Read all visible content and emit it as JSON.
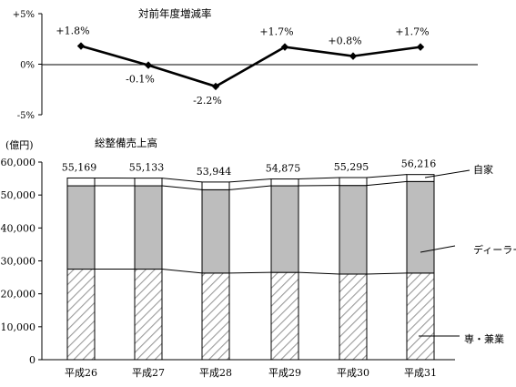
{
  "chart_data": [
    {
      "type": "line",
      "title": "対前年度増減率",
      "x": [
        "平成26",
        "平成27",
        "平成28",
        "平成29",
        "平成30",
        "平成31"
      ],
      "values": [
        1.8,
        -0.1,
        -2.2,
        1.7,
        0.8,
        1.7
      ],
      "data_labels": [
        "+1.8%",
        "-0.1%",
        "-2.2%",
        "+1.7%",
        "+0.8%",
        "+1.7%"
      ],
      "y_ticks": [
        "+5%",
        "0%",
        "-5%"
      ],
      "ylim": [
        -5,
        5
      ],
      "grid": false
    },
    {
      "type": "bar",
      "stacked": true,
      "title": "総整備売上高",
      "ylabel": "(億円)",
      "categories": [
        "平成26",
        "平成27",
        "平成28",
        "平成29",
        "平成30",
        "平成31"
      ],
      "series": [
        {
          "name": "専・兼業",
          "values": [
            27500,
            27500,
            26300,
            26500,
            26000,
            26300
          ]
        },
        {
          "name": "ディーラー",
          "values": [
            25300,
            25300,
            25300,
            26300,
            26900,
            27800
          ]
        },
        {
          "name": "自家",
          "values": [
            2369,
            2333,
            2344,
            2075,
            2395,
            2116
          ]
        }
      ],
      "totals": [
        55169,
        55133,
        53944,
        54875,
        55295,
        56216
      ],
      "total_labels": [
        "55,169",
        "55,133",
        "53,944",
        "54,875",
        "55,295",
        "56,216"
      ],
      "y_ticks": [
        "0",
        "10,000",
        "20,000",
        "30,000",
        "40,000",
        "50,000",
        "60,000"
      ],
      "ylim": [
        0,
        60000
      ],
      "grid": false,
      "legend": "right, callout labels"
    }
  ]
}
